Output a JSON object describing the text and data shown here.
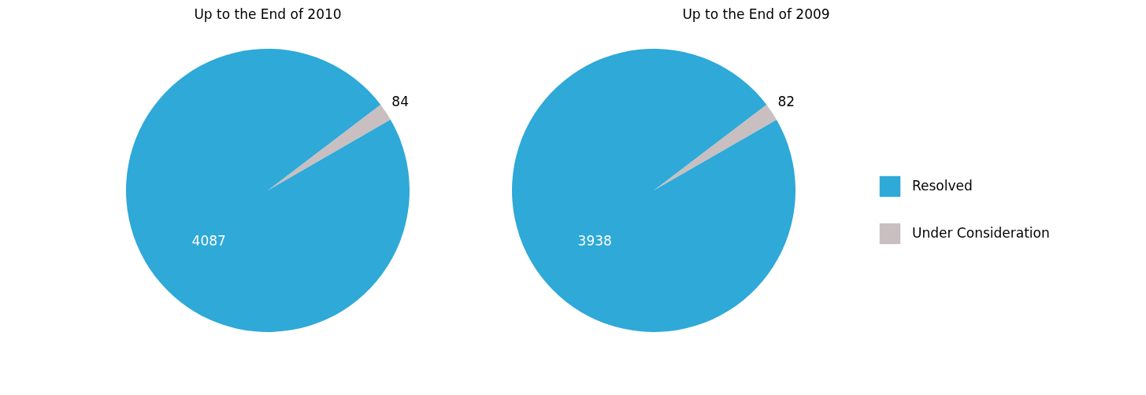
{
  "chart_data": [
    {
      "type": "pie",
      "title": "Up to the End of 2010",
      "categories": [
        null,
        null
      ],
      "values": [
        4087,
        84
      ],
      "colors": [
        "#2ea9d8",
        "#c9bfc0"
      ],
      "data_labels": true,
      "legend": false
    },
    {
      "type": "pie",
      "title": "Up to the End of 2009",
      "categories": [
        "Resolved",
        "Under Consideration"
      ],
      "values": [
        3938,
        82
      ],
      "colors": [
        "#2ea9d8",
        "#c9bfc0"
      ],
      "data_labels": true,
      "legend": "right"
    }
  ]
}
